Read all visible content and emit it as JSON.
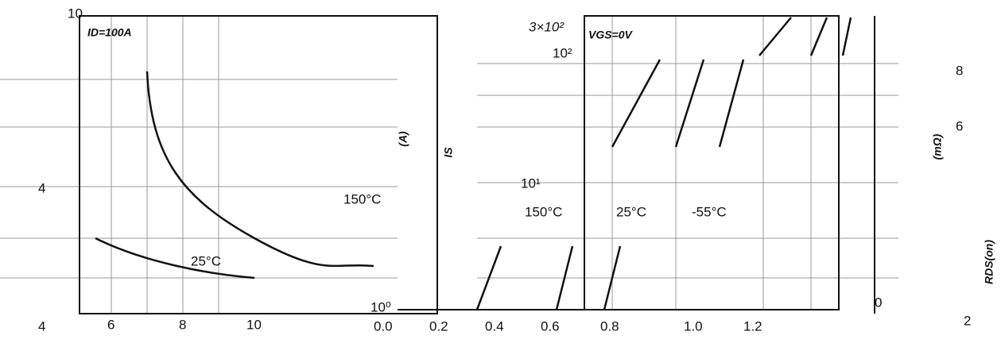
{
  "left_panel": {
    "y_top_label": "10",
    "condition": "ID=100A",
    "y_mid_label": "4",
    "curve_labels": [
      "150°C",
      "25°C"
    ],
    "x_labels": [
      "4",
      "6",
      "8",
      "10"
    ]
  },
  "middle_panel": {
    "y_unit": "(A)",
    "y_symbol": "IS",
    "y_top_label": "3×10²",
    "condition": "VGS=0V",
    "y_labels": [
      "10²",
      "10¹",
      "10⁰"
    ],
    "curve_labels": [
      "150°C",
      "25°C",
      "-55°C"
    ],
    "x_labels": [
      "0.0",
      "0.2",
      "0.4",
      "0.6",
      "0.8",
      "1.0",
      "1.2"
    ]
  },
  "right_panel": {
    "y_labels": [
      "8",
      "6",
      "0"
    ],
    "y_unit": "(mΩ)",
    "y_symbol": "RDS(on)",
    "x_label": "2"
  }
}
